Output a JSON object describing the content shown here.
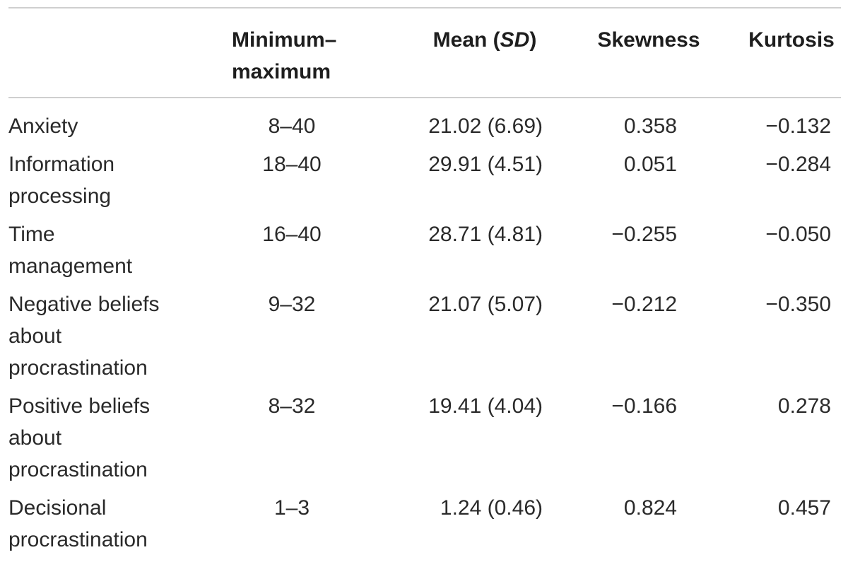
{
  "table": {
    "headers": {
      "range": [
        "Minimum–",
        "maximum"
      ],
      "mean_prefix": "Mean (",
      "mean_italic": "SD",
      "mean_suffix": ")",
      "skew": "Skewness",
      "kurt": "Kurtosis"
    },
    "rows": [
      {
        "label": [
          "Anxiety"
        ],
        "range": "8–40",
        "mean": "21.02 (6.69)",
        "skew": "0.358",
        "kurt": "−0.132"
      },
      {
        "label": [
          "Information",
          "processing"
        ],
        "range": "18–40",
        "mean": "29.91 (4.51)",
        "skew": "0.051",
        "kurt": "−0.284"
      },
      {
        "label": [
          "Time",
          "management"
        ],
        "range": "16–40",
        "mean": "28.71 (4.81)",
        "skew": "−0.255",
        "kurt": "−0.050"
      },
      {
        "label": [
          "Negative beliefs",
          "about",
          "procrastination"
        ],
        "range": "9–32",
        "mean": "21.07 (5.07)",
        "skew": "−0.212",
        "kurt": "−0.350"
      },
      {
        "label": [
          "Positive beliefs",
          "about",
          "procrastination"
        ],
        "range": "8–32",
        "mean": "19.41 (4.04)",
        "skew": "−0.166",
        "kurt": "0.278"
      },
      {
        "label": [
          "Decisional",
          "procrastination"
        ],
        "range": "1–3",
        "mean": "1.24 (0.46)",
        "skew": "0.824",
        "kurt": "0.457"
      }
    ]
  }
}
